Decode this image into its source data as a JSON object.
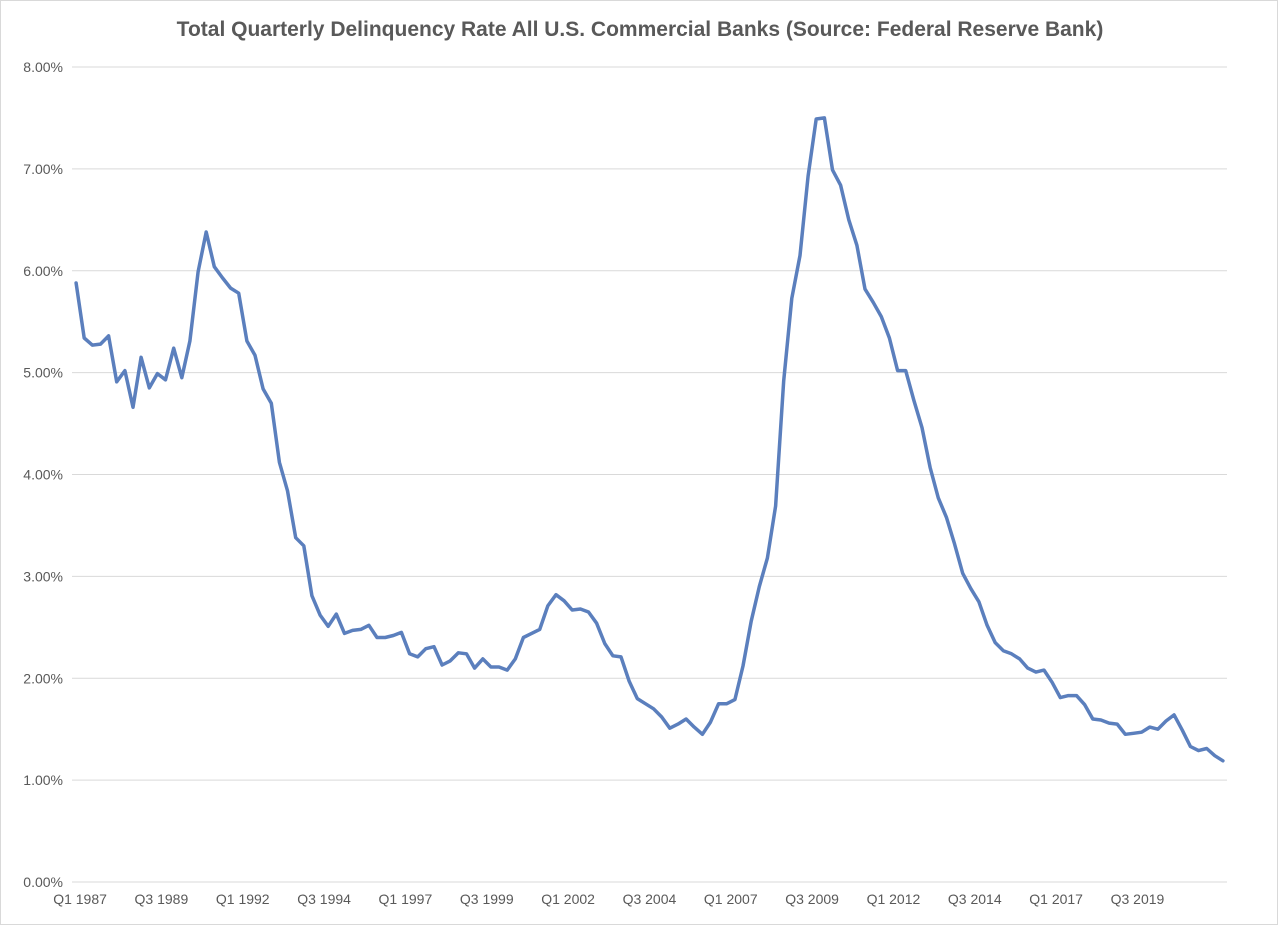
{
  "chart_data": {
    "type": "line",
    "title": "Total Quarterly Delinquency Rate All U.S. Commercial Banks (Source: Federal Reserve Bank)",
    "xlabel": "",
    "ylabel": "",
    "ylim": [
      0,
      8
    ],
    "y_ticks": [
      "0.00%",
      "1.00%",
      "2.00%",
      "3.00%",
      "4.00%",
      "5.00%",
      "6.00%",
      "7.00%",
      "8.00%"
    ],
    "x_tick_labels": [
      {
        "index": 0,
        "label": "Q1 1987"
      },
      {
        "index": 10,
        "label": "Q3 1989"
      },
      {
        "index": 20,
        "label": "Q1 1992"
      },
      {
        "index": 30,
        "label": "Q3 1994"
      },
      {
        "index": 40,
        "label": "Q1 1997"
      },
      {
        "index": 50,
        "label": "Q3 1999"
      },
      {
        "index": 60,
        "label": "Q1 2002"
      },
      {
        "index": 70,
        "label": "Q3 2004"
      },
      {
        "index": 80,
        "label": "Q1 2007"
      },
      {
        "index": 90,
        "label": "Q3 2009"
      },
      {
        "index": 100,
        "label": "Q1 2012"
      },
      {
        "index": 110,
        "label": "Q3 2014"
      },
      {
        "index": 120,
        "label": "Q1 2017"
      },
      {
        "index": 130,
        "label": "Q3 2019"
      }
    ],
    "grid": true,
    "legend": "none",
    "series": [
      {
        "color": "#5b7fbd",
        "values": [
          5.88,
          5.34,
          5.27,
          5.28,
          5.36,
          4.91,
          5.02,
          4.66,
          5.15,
          4.85,
          4.99,
          4.93,
          5.24,
          4.95,
          5.31,
          5.99,
          6.38,
          6.04,
          5.93,
          5.83,
          5.78,
          5.31,
          5.17,
          4.84,
          4.7,
          4.12,
          3.84,
          3.38,
          3.3,
          2.81,
          2.62,
          2.51,
          2.63,
          2.44,
          2.47,
          2.48,
          2.52,
          2.4,
          2.4,
          2.42,
          2.45,
          2.24,
          2.21,
          2.29,
          2.31,
          2.13,
          2.17,
          2.25,
          2.24,
          2.1,
          2.19,
          2.11,
          2.11,
          2.08,
          2.19,
          2.4,
          2.44,
          2.48,
          2.71,
          2.82,
          2.76,
          2.67,
          2.68,
          2.65,
          2.54,
          2.34,
          2.22,
          2.21,
          1.97,
          1.8,
          1.75,
          1.7,
          1.62,
          1.51,
          1.55,
          1.6,
          1.52,
          1.45,
          1.57,
          1.75,
          1.75,
          1.79,
          2.12,
          2.56,
          2.9,
          3.18,
          3.69,
          4.92,
          5.73,
          6.15,
          6.93,
          7.49,
          7.5,
          6.99,
          6.84,
          6.5,
          6.25,
          5.82,
          5.69,
          5.55,
          5.34,
          5.02,
          5.02,
          4.73,
          4.46,
          4.07,
          3.77,
          3.58,
          3.32,
          3.03,
          2.88,
          2.75,
          2.52,
          2.35,
          2.27,
          2.24,
          2.19,
          2.1,
          2.06,
          2.08,
          1.96,
          1.81,
          1.83,
          1.83,
          1.74,
          1.6,
          1.59,
          1.56,
          1.55,
          1.45,
          1.46,
          1.47,
          1.52,
          1.5,
          1.58,
          1.64,
          1.49,
          1.33,
          1.29,
          1.31,
          1.24,
          1.19
        ]
      }
    ]
  }
}
